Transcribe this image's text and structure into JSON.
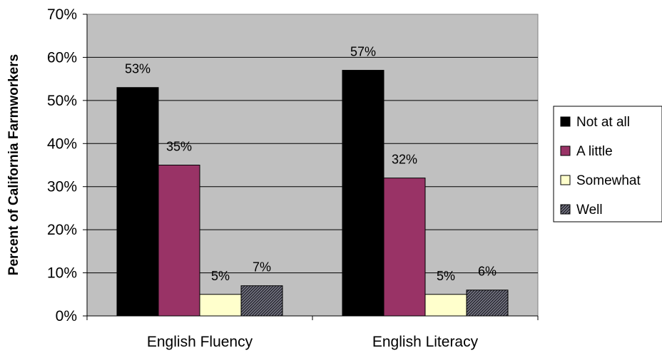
{
  "chart_data": {
    "type": "bar",
    "title": "",
    "xlabel": "",
    "ylabel": "Percent of California Farmworkers",
    "ylim": [
      0,
      70
    ],
    "y_ticks": [
      "0%",
      "10%",
      "20%",
      "30%",
      "40%",
      "50%",
      "60%",
      "70%"
    ],
    "y_tick_values": [
      0,
      10,
      20,
      30,
      40,
      50,
      60,
      70
    ],
    "categories": [
      "English Fluency",
      "English Literacy"
    ],
    "series": [
      {
        "name": "Not at all",
        "values": [
          53,
          57
        ],
        "labels": [
          "53%",
          "57%"
        ],
        "color": "#000000",
        "pattern": "solid"
      },
      {
        "name": "A little",
        "values": [
          35,
          32
        ],
        "labels": [
          "35%",
          "32%"
        ],
        "color": "#993366",
        "pattern": "solid"
      },
      {
        "name": "Somewhat",
        "values": [
          5,
          5
        ],
        "labels": [
          "5%",
          "5%"
        ],
        "color": "#ffffcc",
        "pattern": "solid"
      },
      {
        "name": "Well",
        "values": [
          7,
          6
        ],
        "labels": [
          "7%",
          "6%"
        ],
        "color": "#555566",
        "pattern": "crosshatch"
      }
    ],
    "plot_background": "#c0c0c0",
    "grid": true,
    "legend_position": "right"
  }
}
